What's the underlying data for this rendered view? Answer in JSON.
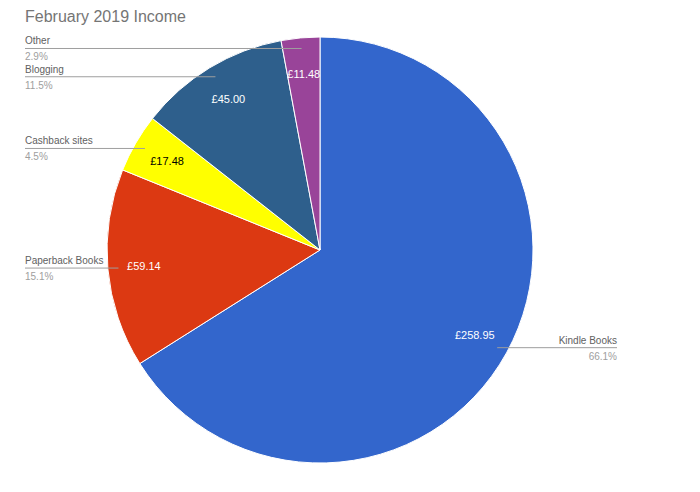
{
  "chart_data": {
    "type": "pie",
    "title": "February 2019 Income",
    "categories": [
      "Kindle Books",
      "Paperback Books",
      "Cashback sites",
      "Blogging",
      "Other"
    ],
    "values": [
      258.95,
      59.14,
      17.48,
      45.0,
      11.48
    ],
    "value_labels": [
      "£258.95",
      "£59.14",
      "£17.48",
      "£45.00",
      "£11.48"
    ],
    "percentages": [
      66.1,
      15.1,
      4.5,
      11.5,
      2.9
    ],
    "percentage_labels": [
      "66.1%",
      "15.1%",
      "4.5%",
      "11.5%",
      "2.9%"
    ],
    "colors": [
      "#3366cc",
      "#dc3912",
      "#ffff00",
      "#2e5f8c",
      "#994499"
    ],
    "data_labels": true
  }
}
